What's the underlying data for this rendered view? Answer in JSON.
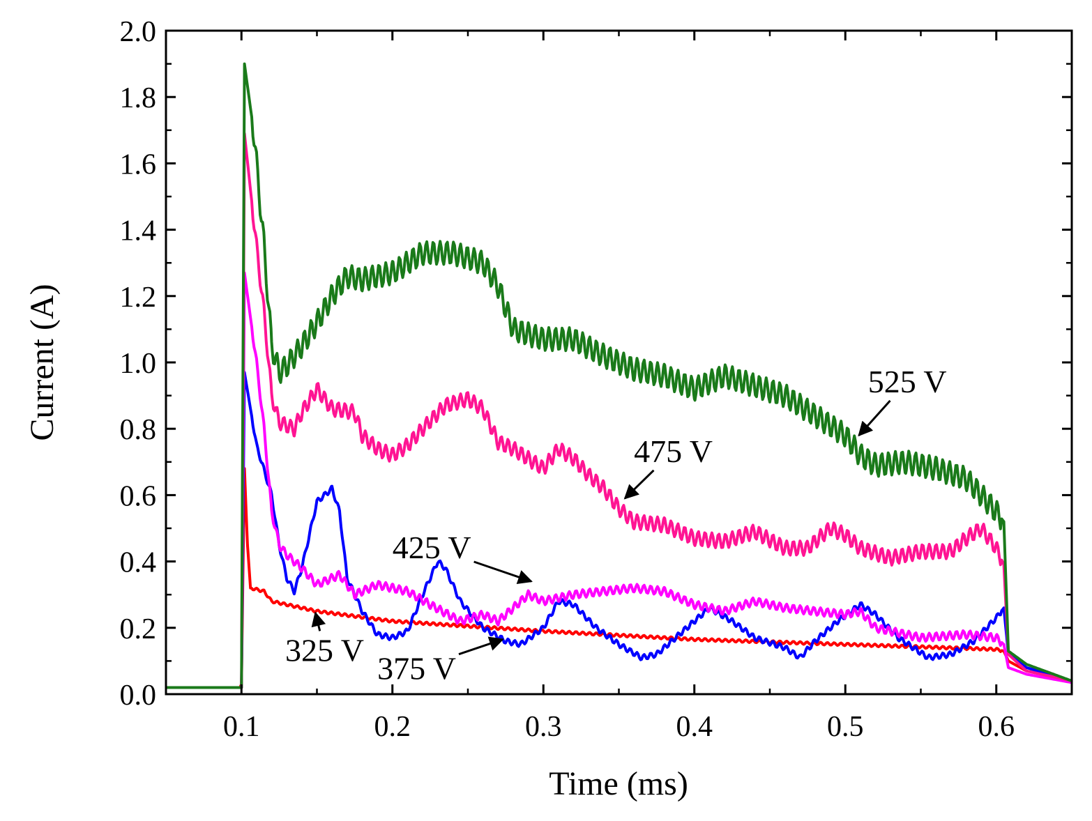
{
  "chart_data": {
    "type": "line",
    "title": "",
    "xlabel": "Time (ms)",
    "ylabel": "Current (A)",
    "xlim": [
      0.05,
      0.65
    ],
    "ylim": [
      0.0,
      2.0
    ],
    "xticks": [
      0.1,
      0.2,
      0.3,
      0.4,
      0.5,
      0.6
    ],
    "xtick_labels": [
      "0.1",
      "0.2",
      "0.3",
      "0.4",
      "0.5",
      "0.6"
    ],
    "yticks": [
      0.0,
      0.2,
      0.4,
      0.6,
      0.8,
      1.0,
      1.2,
      1.4,
      1.6,
      1.8,
      2.0
    ],
    "ytick_labels": [
      "0.0",
      "0.2",
      "0.4",
      "0.6",
      "0.8",
      "1.0",
      "1.2",
      "1.4",
      "1.6",
      "1.8",
      "2.0"
    ],
    "grid": false,
    "series": [
      {
        "name": "325 V",
        "color": "#ff0000",
        "ripple": 0.004,
        "points": [
          [
            0.05,
            0.02
          ],
          [
            0.099,
            0.02
          ],
          [
            0.1,
            0.03
          ],
          [
            0.102,
            0.68
          ],
          [
            0.104,
            0.45
          ],
          [
            0.106,
            0.32
          ],
          [
            0.115,
            0.31
          ],
          [
            0.12,
            0.28
          ],
          [
            0.15,
            0.25
          ],
          [
            0.2,
            0.22
          ],
          [
            0.3,
            0.19
          ],
          [
            0.4,
            0.165
          ],
          [
            0.5,
            0.15
          ],
          [
            0.6,
            0.135
          ],
          [
            0.605,
            0.13
          ],
          [
            0.608,
            0.1
          ],
          [
            0.62,
            0.07
          ],
          [
            0.65,
            0.04
          ]
        ]
      },
      {
        "name": "375 V",
        "color": "#0000ff",
        "ripple": 0.008,
        "points": [
          [
            0.05,
            0.02
          ],
          [
            0.1,
            0.02
          ],
          [
            0.102,
            0.97
          ],
          [
            0.11,
            0.75
          ],
          [
            0.12,
            0.6
          ],
          [
            0.125,
            0.45
          ],
          [
            0.13,
            0.35
          ],
          [
            0.135,
            0.31
          ],
          [
            0.14,
            0.38
          ],
          [
            0.15,
            0.58
          ],
          [
            0.16,
            0.62
          ],
          [
            0.165,
            0.55
          ],
          [
            0.17,
            0.35
          ],
          [
            0.18,
            0.25
          ],
          [
            0.19,
            0.18
          ],
          [
            0.2,
            0.17
          ],
          [
            0.21,
            0.19
          ],
          [
            0.22,
            0.3
          ],
          [
            0.23,
            0.4
          ],
          [
            0.235,
            0.38
          ],
          [
            0.245,
            0.28
          ],
          [
            0.26,
            0.2
          ],
          [
            0.275,
            0.16
          ],
          [
            0.285,
            0.15
          ],
          [
            0.3,
            0.2
          ],
          [
            0.31,
            0.28
          ],
          [
            0.32,
            0.27
          ],
          [
            0.335,
            0.2
          ],
          [
            0.35,
            0.15
          ],
          [
            0.365,
            0.11
          ],
          [
            0.375,
            0.12
          ],
          [
            0.39,
            0.18
          ],
          [
            0.41,
            0.26
          ],
          [
            0.425,
            0.22
          ],
          [
            0.44,
            0.17
          ],
          [
            0.46,
            0.14
          ],
          [
            0.47,
            0.11
          ],
          [
            0.48,
            0.16
          ],
          [
            0.495,
            0.22
          ],
          [
            0.51,
            0.27
          ],
          [
            0.52,
            0.24
          ],
          [
            0.535,
            0.17
          ],
          [
            0.555,
            0.11
          ],
          [
            0.57,
            0.12
          ],
          [
            0.585,
            0.16
          ],
          [
            0.6,
            0.23
          ],
          [
            0.605,
            0.26
          ],
          [
            0.608,
            0.12
          ],
          [
            0.62,
            0.08
          ],
          [
            0.65,
            0.04
          ]
        ]
      },
      {
        "name": "425 V",
        "color": "#ff00ff",
        "ripple": 0.012,
        "points": [
          [
            0.05,
            0.02
          ],
          [
            0.1,
            0.02
          ],
          [
            0.102,
            1.27
          ],
          [
            0.11,
            1.0
          ],
          [
            0.115,
            0.8
          ],
          [
            0.12,
            0.55
          ],
          [
            0.125,
            0.45
          ],
          [
            0.13,
            0.42
          ],
          [
            0.14,
            0.38
          ],
          [
            0.15,
            0.33
          ],
          [
            0.165,
            0.36
          ],
          [
            0.175,
            0.3
          ],
          [
            0.19,
            0.33
          ],
          [
            0.2,
            0.32
          ],
          [
            0.21,
            0.31
          ],
          [
            0.225,
            0.27
          ],
          [
            0.245,
            0.22
          ],
          [
            0.26,
            0.24
          ],
          [
            0.27,
            0.22
          ],
          [
            0.28,
            0.26
          ],
          [
            0.29,
            0.3
          ],
          [
            0.3,
            0.28
          ],
          [
            0.32,
            0.3
          ],
          [
            0.34,
            0.31
          ],
          [
            0.36,
            0.32
          ],
          [
            0.38,
            0.31
          ],
          [
            0.39,
            0.29
          ],
          [
            0.4,
            0.27
          ],
          [
            0.42,
            0.25
          ],
          [
            0.44,
            0.28
          ],
          [
            0.46,
            0.26
          ],
          [
            0.48,
            0.25
          ],
          [
            0.5,
            0.24
          ],
          [
            0.51,
            0.25
          ],
          [
            0.52,
            0.2
          ],
          [
            0.53,
            0.19
          ],
          [
            0.55,
            0.17
          ],
          [
            0.58,
            0.18
          ],
          [
            0.6,
            0.17
          ],
          [
            0.605,
            0.15
          ],
          [
            0.608,
            0.08
          ],
          [
            0.62,
            0.06
          ],
          [
            0.65,
            0.035
          ]
        ]
      },
      {
        "name": "475 V",
        "color": "#ff1493",
        "ripple": 0.022,
        "points": [
          [
            0.05,
            0.02
          ],
          [
            0.1,
            0.02
          ],
          [
            0.102,
            1.69
          ],
          [
            0.11,
            1.35
          ],
          [
            0.115,
            1.15
          ],
          [
            0.12,
            0.9
          ],
          [
            0.125,
            0.82
          ],
          [
            0.135,
            0.8
          ],
          [
            0.14,
            0.85
          ],
          [
            0.15,
            0.92
          ],
          [
            0.16,
            0.86
          ],
          [
            0.175,
            0.85
          ],
          [
            0.18,
            0.78
          ],
          [
            0.19,
            0.74
          ],
          [
            0.2,
            0.72
          ],
          [
            0.21,
            0.75
          ],
          [
            0.22,
            0.8
          ],
          [
            0.235,
            0.87
          ],
          [
            0.25,
            0.89
          ],
          [
            0.26,
            0.86
          ],
          [
            0.27,
            0.76
          ],
          [
            0.28,
            0.74
          ],
          [
            0.29,
            0.71
          ],
          [
            0.3,
            0.68
          ],
          [
            0.31,
            0.74
          ],
          [
            0.32,
            0.71
          ],
          [
            0.33,
            0.66
          ],
          [
            0.34,
            0.62
          ],
          [
            0.35,
            0.56
          ],
          [
            0.36,
            0.52
          ],
          [
            0.38,
            0.51
          ],
          [
            0.4,
            0.47
          ],
          [
            0.42,
            0.46
          ],
          [
            0.44,
            0.49
          ],
          [
            0.46,
            0.44
          ],
          [
            0.475,
            0.44
          ],
          [
            0.49,
            0.5
          ],
          [
            0.5,
            0.48
          ],
          [
            0.51,
            0.44
          ],
          [
            0.53,
            0.41
          ],
          [
            0.55,
            0.43
          ],
          [
            0.57,
            0.43
          ],
          [
            0.58,
            0.47
          ],
          [
            0.59,
            0.5
          ],
          [
            0.6,
            0.44
          ],
          [
            0.605,
            0.39
          ],
          [
            0.608,
            0.12
          ],
          [
            0.62,
            0.07
          ],
          [
            0.65,
            0.04
          ]
        ]
      },
      {
        "name": "525 V",
        "color": "#1a7a1a",
        "ripple": 0.035,
        "points": [
          [
            0.05,
            0.02
          ],
          [
            0.1,
            0.02
          ],
          [
            0.102,
            1.9
          ],
          [
            0.108,
            1.7
          ],
          [
            0.115,
            1.35
          ],
          [
            0.12,
            1.05
          ],
          [
            0.125,
            0.97
          ],
          [
            0.13,
            0.99
          ],
          [
            0.14,
            1.05
          ],
          [
            0.15,
            1.12
          ],
          [
            0.16,
            1.2
          ],
          [
            0.17,
            1.26
          ],
          [
            0.18,
            1.25
          ],
          [
            0.2,
            1.27
          ],
          [
            0.22,
            1.33
          ],
          [
            0.24,
            1.33
          ],
          [
            0.26,
            1.3
          ],
          [
            0.27,
            1.23
          ],
          [
            0.28,
            1.1
          ],
          [
            0.3,
            1.07
          ],
          [
            0.32,
            1.07
          ],
          [
            0.34,
            1.02
          ],
          [
            0.36,
            0.98
          ],
          [
            0.38,
            0.96
          ],
          [
            0.4,
            0.92
          ],
          [
            0.42,
            0.96
          ],
          [
            0.44,
            0.93
          ],
          [
            0.46,
            0.9
          ],
          [
            0.48,
            0.84
          ],
          [
            0.5,
            0.78
          ],
          [
            0.51,
            0.72
          ],
          [
            0.52,
            0.69
          ],
          [
            0.54,
            0.7
          ],
          [
            0.56,
            0.68
          ],
          [
            0.58,
            0.65
          ],
          [
            0.6,
            0.55
          ],
          [
            0.605,
            0.52
          ],
          [
            0.608,
            0.13
          ],
          [
            0.62,
            0.09
          ],
          [
            0.65,
            0.04
          ]
        ]
      }
    ],
    "annotations": [
      {
        "text": "325 V",
        "series": "325 V",
        "x": 0.129,
        "y": 0.1,
        "tip_x": 0.149,
        "tip_y": 0.245
      },
      {
        "text": "375 V",
        "series": "375 V",
        "x": 0.19,
        "y": 0.045,
        "tip_x": 0.273,
        "tip_y": 0.165
      },
      {
        "text": "425 V",
        "series": "425 V",
        "x": 0.2,
        "y": 0.41,
        "tip_x": 0.292,
        "tip_y": 0.34
      },
      {
        "text": "475 V",
        "series": "475 V",
        "x": 0.36,
        "y": 0.7,
        "tip_x": 0.354,
        "tip_y": 0.59
      },
      {
        "text": "525 V",
        "series": "525 V",
        "x": 0.515,
        "y": 0.91,
        "tip_x": 0.509,
        "tip_y": 0.78
      }
    ]
  }
}
